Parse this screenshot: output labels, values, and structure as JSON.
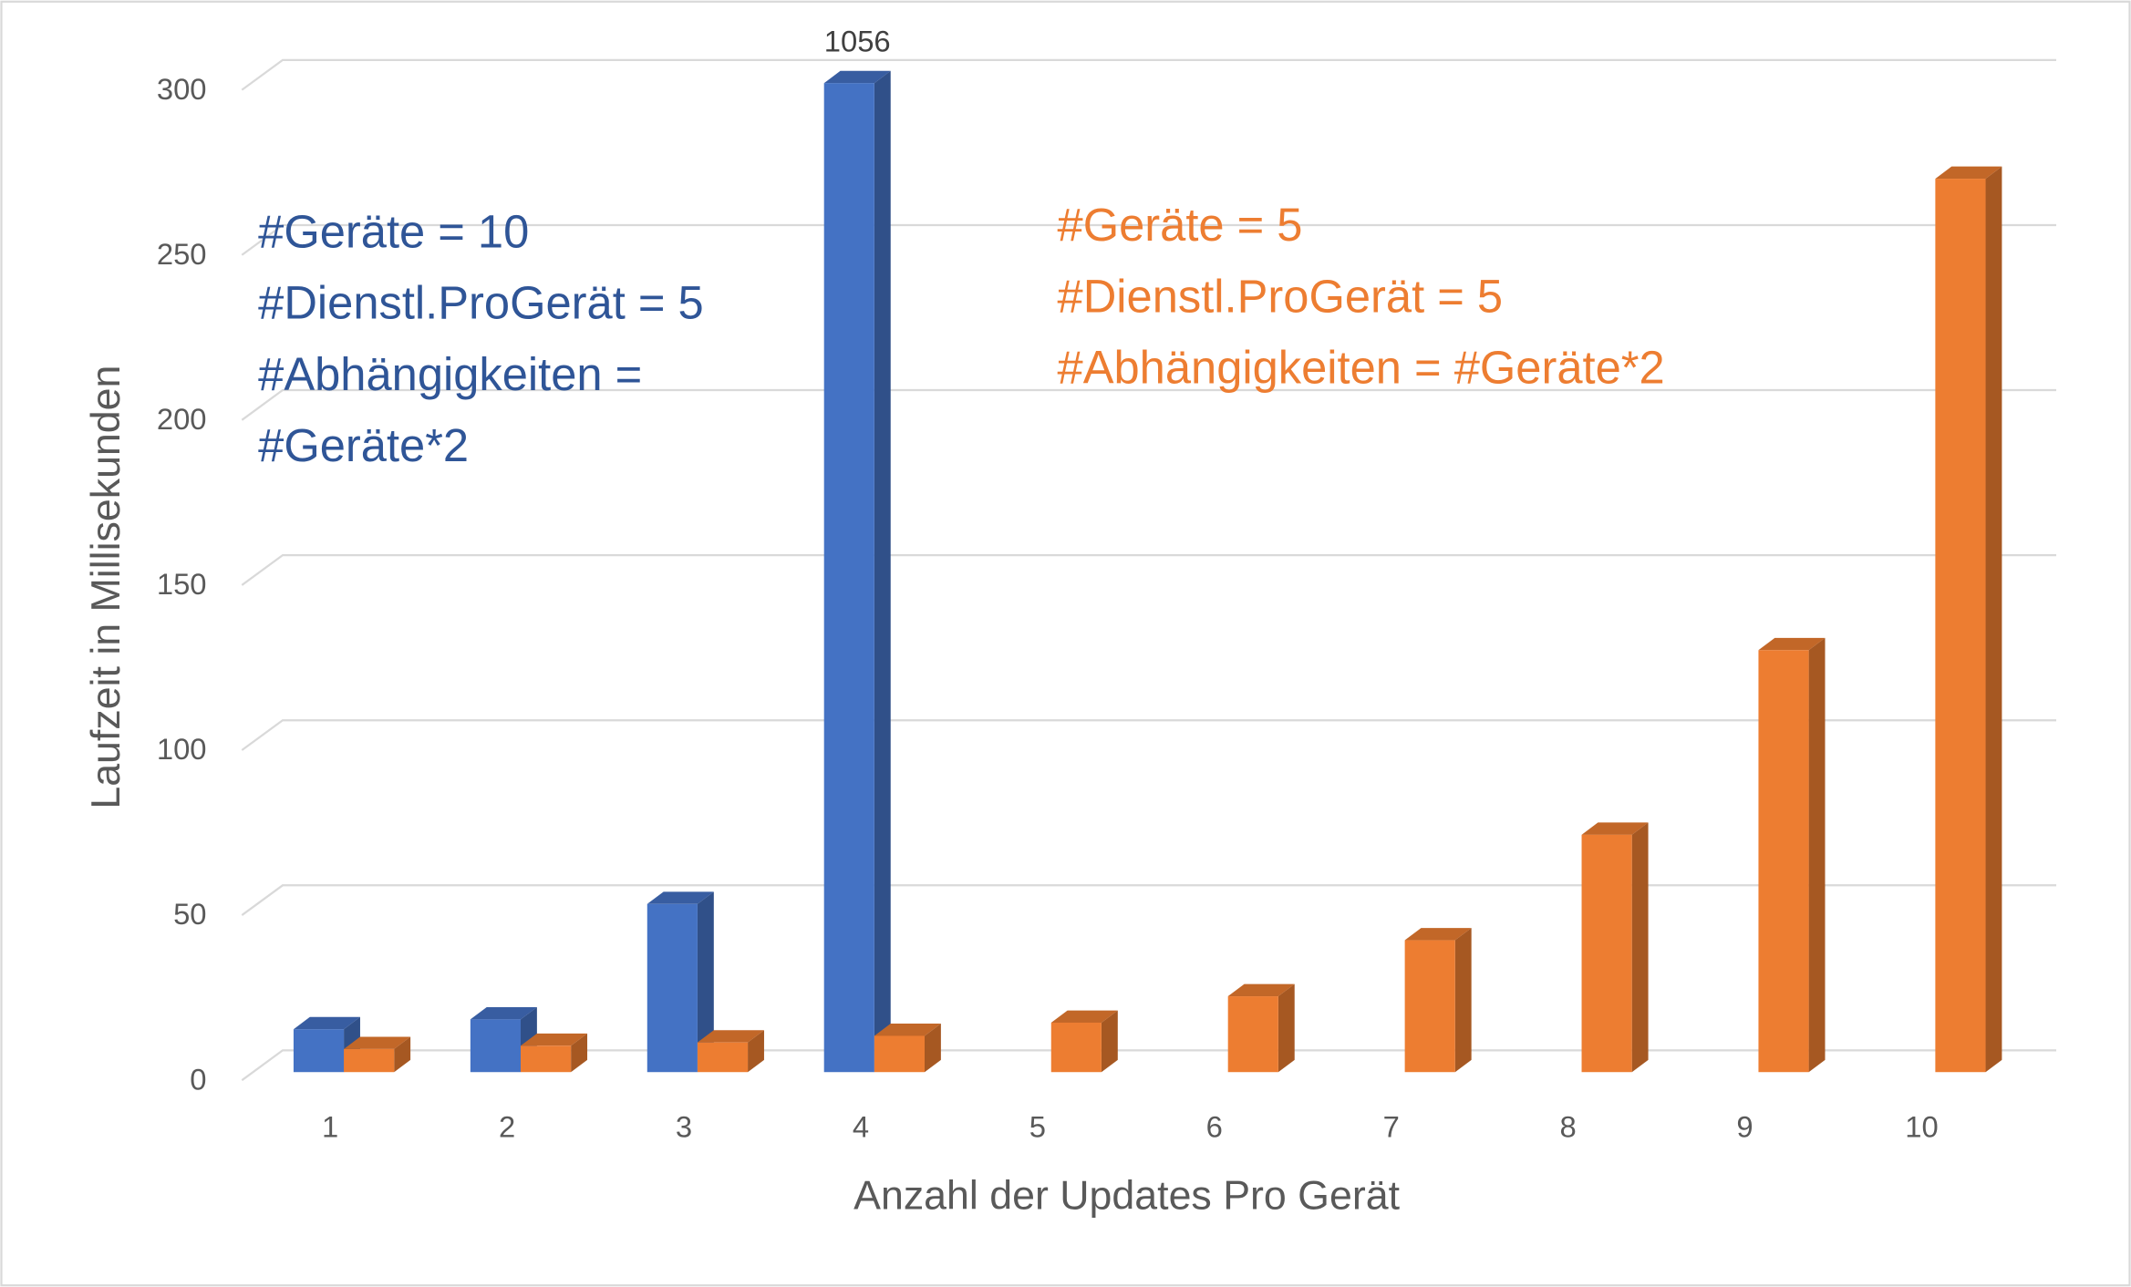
{
  "chart_data": {
    "type": "bar3d",
    "x_label": "Anzahl der Updates Pro Gerät",
    "y_label": "Laufzeit in Millisekunden",
    "categories": [
      "1",
      "2",
      "3",
      "4",
      "5",
      "6",
      "7",
      "8",
      "9",
      "10"
    ],
    "series": [
      {
        "color": "#4472c4",
        "values": [
          13,
          16,
          51,
          1056,
          null,
          null,
          null,
          null,
          null,
          null
        ]
      },
      {
        "color": "#ed7d31",
        "values": [
          7,
          8,
          9,
          11,
          15,
          23,
          40,
          72,
          128,
          271
        ]
      }
    ],
    "ylim": [
      0,
      300
    ],
    "yticks": [
      0,
      50,
      100,
      150,
      200,
      250,
      300
    ],
    "grid": true,
    "annotations": [
      {
        "color": "#2f5597",
        "lines": [
          "#Geräte = 10",
          "#Dienstl.ProGerät = 5",
          "#Abhängigkeiten =",
          "#Geräte*2"
        ]
      },
      {
        "color": "#ed7d31",
        "lines": [
          "#Geräte = 5",
          "#Dienstl.ProGerät = 5",
          "#Abhängigkeiten = #Geräte*2"
        ]
      }
    ]
  }
}
